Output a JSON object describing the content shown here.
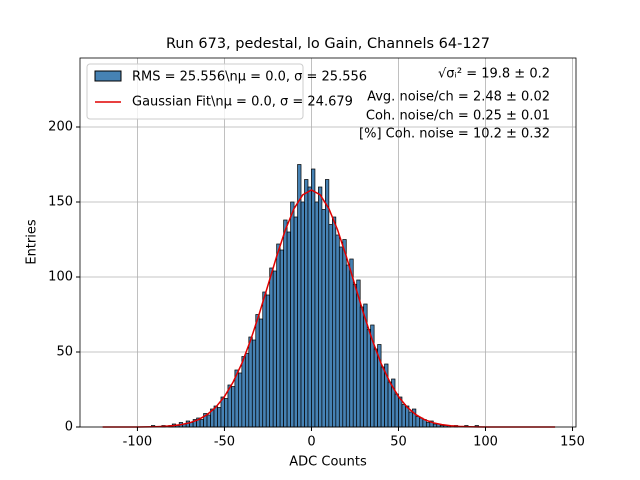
{
  "chart_data": {
    "type": "histogram",
    "title": "Run 673, pedestal, lo Gain, Channels 64-127",
    "xlabel": "ADC Counts",
    "ylabel": "Entries",
    "name": "RMS = 25.556\\nμ = 0.0, σ = 25.556",
    "color": "#4682b4",
    "edge_color": "#000000",
    "bins": [
      -120,
      -118,
      -116,
      -114,
      -112,
      -110,
      -108,
      -106,
      -104,
      -102,
      -100,
      -98,
      -96,
      -94,
      -92,
      -90,
      -88,
      -86,
      -84,
      -82,
      -80,
      -78,
      -76,
      -74,
      -72,
      -70,
      -68,
      -66,
      -64,
      -62,
      -60,
      -58,
      -56,
      -54,
      -52,
      -50,
      -48,
      -46,
      -44,
      -42,
      -40,
      -38,
      -36,
      -34,
      -32,
      -30,
      -28,
      -26,
      -24,
      -22,
      -20,
      -18,
      -16,
      -14,
      -12,
      -10,
      -8,
      -6,
      -4,
      -2,
      0,
      2,
      4,
      6,
      8,
      10,
      12,
      14,
      16,
      18,
      20,
      22,
      24,
      26,
      28,
      30,
      32,
      34,
      36,
      38,
      40,
      42,
      44,
      46,
      48,
      50,
      52,
      54,
      56,
      58,
      60,
      62,
      64,
      66,
      68,
      70,
      72,
      74,
      76,
      78,
      80,
      82,
      84,
      86,
      88,
      90,
      92,
      94,
      96,
      98,
      100,
      102,
      104,
      106,
      108,
      110,
      112,
      114,
      116,
      118,
      120,
      122,
      124,
      126,
      128,
      130,
      132,
      134,
      136,
      138,
      140
    ],
    "values": [
      0,
      0,
      0,
      0,
      0,
      0,
      0,
      0,
      0,
      0,
      0,
      0,
      0,
      0,
      1,
      0,
      0,
      1,
      0,
      1,
      2,
      1,
      3,
      2,
      4,
      3,
      5,
      6,
      5,
      9,
      8,
      12,
      14,
      13,
      20,
      19,
      28,
      27,
      38,
      36,
      47,
      49,
      60,
      58,
      75,
      72,
      90,
      88,
      106,
      104,
      122,
      118,
      138,
      130,
      150,
      140,
      175,
      150,
      165,
      160,
      172,
      150,
      160,
      145,
      165,
      135,
      140,
      128,
      120,
      125,
      108,
      112,
      95,
      98,
      80,
      82,
      65,
      68,
      52,
      55,
      40,
      42,
      30,
      32,
      22,
      20,
      15,
      14,
      10,
      12,
      7,
      6,
      5,
      3,
      4,
      2,
      2,
      1,
      1,
      1,
      0,
      1,
      0,
      0,
      1,
      0,
      0,
      1,
      0,
      0,
      0,
      0,
      0,
      0,
      0,
      0,
      0,
      0,
      0,
      0,
      0,
      0,
      0,
      0,
      0,
      0,
      0,
      0,
      0,
      0
    ],
    "fit": {
      "type": "line",
      "name": "Gaussian Fit\\nμ = 0.0, σ = 24.679",
      "color": "#e00000",
      "x": [
        -120,
        -115,
        -110,
        -105,
        -100,
        -95,
        -90,
        -85,
        -80,
        -75,
        -70,
        -65,
        -60,
        -55,
        -50,
        -45,
        -40,
        -35,
        -30,
        -25,
        -20,
        -15,
        -10,
        -5,
        0,
        5,
        10,
        15,
        20,
        25,
        30,
        35,
        40,
        45,
        50,
        55,
        60,
        65,
        70,
        75,
        80,
        85,
        90,
        95,
        100,
        105,
        110,
        115,
        120,
        125,
        130,
        135,
        140
      ],
      "values": [
        0,
        0,
        0,
        0,
        0,
        0.1,
        0.2,
        0.4,
        0.8,
        1.6,
        2.8,
        4.9,
        8.2,
        13.2,
        20.3,
        30.0,
        42.4,
        57.8,
        75.5,
        94.5,
        113.8,
        131.4,
        145.6,
        154.8,
        158,
        154.8,
        145.6,
        131.4,
        113.8,
        94.5,
        75.5,
        57.8,
        42.4,
        30.0,
        20.3,
        13.2,
        8.2,
        4.9,
        2.8,
        1.6,
        0.8,
        0.4,
        0.2,
        0.1,
        0,
        0,
        0,
        0,
        0,
        0,
        0,
        0,
        0
      ]
    },
    "annotations": [
      "√σᵢ² = 19.8 ± 0.2",
      "Avg. noise/ch = 2.48 ± 0.02",
      "Coh. noise/ch = 0.25 ± 0.01",
      "[%] Coh. noise = 10.2 ± 0.32"
    ],
    "xlim": [
      -133,
      152
    ],
    "ylim": [
      0,
      246
    ],
    "xticks": [
      -100,
      -50,
      0,
      50,
      100,
      150
    ],
    "yticks": [
      0,
      50,
      100,
      150,
      200
    ],
    "grid": true,
    "legend": "upper left"
  }
}
